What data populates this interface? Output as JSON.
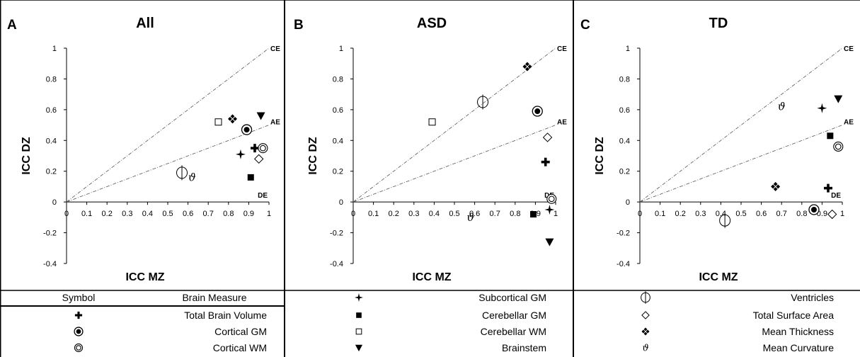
{
  "chart_data": [
    {
      "type": "scatter",
      "letter": "A",
      "title": "All",
      "xlabel": "ICC MZ",
      "ylabel": "ICC DZ",
      "xlim": [
        0,
        1
      ],
      "ylim": [
        -0.4,
        1
      ],
      "xticks": [
        "0",
        "0.1",
        "0.2",
        "0.3",
        "0.4",
        "0.5",
        "0.6",
        "0.7",
        "0.8",
        "0.9",
        "1"
      ],
      "yticks": [
        "-0.4",
        "-0.2",
        "0",
        "0.2",
        "0.4",
        "0.6",
        "0.8",
        "1"
      ],
      "reference_lines": {
        "CE": "CE",
        "AE": "AE",
        "DE": "DE"
      },
      "points": [
        {
          "symbol": "total-brain-volume",
          "x": 0.93,
          "y": 0.35
        },
        {
          "symbol": "cortical-gm",
          "x": 0.89,
          "y": 0.47
        },
        {
          "symbol": "cortical-wm",
          "x": 0.97,
          "y": 0.35
        },
        {
          "symbol": "subcortical-gm",
          "x": 0.86,
          "y": 0.31
        },
        {
          "symbol": "cerebellar-gm",
          "x": 0.91,
          "y": 0.16
        },
        {
          "symbol": "cerebellar-wm",
          "x": 0.75,
          "y": 0.52
        },
        {
          "symbol": "brainstem",
          "x": 0.96,
          "y": 0.56
        },
        {
          "symbol": "ventricles",
          "x": 0.57,
          "y": 0.19
        },
        {
          "symbol": "total-surface-area",
          "x": 0.95,
          "y": 0.28
        },
        {
          "symbol": "mean-thickness",
          "x": 0.82,
          "y": 0.54
        },
        {
          "symbol": "mean-curvature",
          "x": 0.62,
          "y": 0.16
        }
      ]
    },
    {
      "type": "scatter",
      "letter": "B",
      "title": "ASD",
      "xlabel": "ICC MZ",
      "ylabel": "ICC DZ",
      "xlim": [
        0,
        1
      ],
      "ylim": [
        -0.4,
        1
      ],
      "xticks": [
        "0",
        "0.1",
        "0.2",
        "0.3",
        "0.4",
        "0.5",
        "0.6",
        "0.7",
        "0.8",
        "0.9",
        "1"
      ],
      "yticks": [
        "-0.4",
        "-0.2",
        "0",
        "0.2",
        "0.4",
        "0.6",
        "0.8",
        "1"
      ],
      "reference_lines": {
        "CE": "CE",
        "AE": "AE",
        "DE": "DE"
      },
      "points": [
        {
          "symbol": "total-brain-volume",
          "x": 0.95,
          "y": 0.26
        },
        {
          "symbol": "cortical-gm",
          "x": 0.91,
          "y": 0.59
        },
        {
          "symbol": "cortical-wm",
          "x": 0.98,
          "y": 0.02
        },
        {
          "symbol": "subcortical-gm",
          "x": 0.97,
          "y": -0.05
        },
        {
          "symbol": "cerebellar-gm",
          "x": 0.89,
          "y": -0.08
        },
        {
          "symbol": "cerebellar-wm",
          "x": 0.39,
          "y": 0.52
        },
        {
          "symbol": "brainstem",
          "x": 0.97,
          "y": -0.26
        },
        {
          "symbol": "ventricles",
          "x": 0.64,
          "y": 0.65
        },
        {
          "symbol": "total-surface-area",
          "x": 0.96,
          "y": 0.42
        },
        {
          "symbol": "mean-thickness",
          "x": 0.86,
          "y": 0.88
        },
        {
          "symbol": "mean-curvature",
          "x": 0.58,
          "y": -0.1
        }
      ]
    },
    {
      "type": "scatter",
      "letter": "C",
      "title": "TD",
      "xlabel": "ICC MZ",
      "ylabel": "ICC DZ",
      "xlim": [
        0,
        1
      ],
      "ylim": [
        -0.4,
        1
      ],
      "xticks": [
        "0",
        "0.1",
        "0.2",
        "0.3",
        "0.4",
        "0.5",
        "0.6",
        "0.7",
        "0.8",
        "0.9",
        "1"
      ],
      "yticks": [
        "-0.4",
        "-0.2",
        "0",
        "0.2",
        "0.4",
        "0.6",
        "0.8",
        "1"
      ],
      "reference_lines": {
        "CE": "CE",
        "AE": "AE",
        "DE": "DE"
      },
      "points": [
        {
          "symbol": "total-brain-volume",
          "x": 0.93,
          "y": 0.09
        },
        {
          "symbol": "cortical-gm",
          "x": 0.86,
          "y": -0.05
        },
        {
          "symbol": "cortical-wm",
          "x": 0.98,
          "y": 0.36
        },
        {
          "symbol": "subcortical-gm",
          "x": 0.9,
          "y": 0.61
        },
        {
          "symbol": "cerebellar-gm",
          "x": 0.94,
          "y": 0.43
        },
        {
          "symbol": "brainstem",
          "x": 0.98,
          "y": 0.67
        },
        {
          "symbol": "ventricles",
          "x": 0.42,
          "y": -0.12
        },
        {
          "symbol": "total-surface-area",
          "x": 0.95,
          "y": -0.08
        },
        {
          "symbol": "mean-thickness",
          "x": 0.67,
          "y": 0.1
        },
        {
          "symbol": "mean-curvature",
          "x": 0.7,
          "y": 0.62
        }
      ]
    }
  ],
  "legend": {
    "header": {
      "symbol": "Symbol",
      "measure": "Brain Measure"
    },
    "entries": [
      {
        "symbol": "total-brain-volume",
        "label": "Total Brain Volume"
      },
      {
        "symbol": "cortical-gm",
        "label": "Cortical GM"
      },
      {
        "symbol": "cortical-wm",
        "label": "Cortical WM"
      },
      {
        "symbol": "subcortical-gm",
        "label": "Subcortical GM"
      },
      {
        "symbol": "cerebellar-gm",
        "label": "Cerebellar GM"
      },
      {
        "symbol": "cerebellar-wm",
        "label": "Cerebellar WM"
      },
      {
        "symbol": "brainstem",
        "label": "Brainstem"
      },
      {
        "symbol": "ventricles",
        "label": "Ventricles"
      },
      {
        "symbol": "total-surface-area",
        "label": "Total Surface Area"
      },
      {
        "symbol": "mean-thickness",
        "label": "Mean Thickness"
      },
      {
        "symbol": "mean-curvature",
        "label": "Mean Curvature"
      }
    ]
  }
}
